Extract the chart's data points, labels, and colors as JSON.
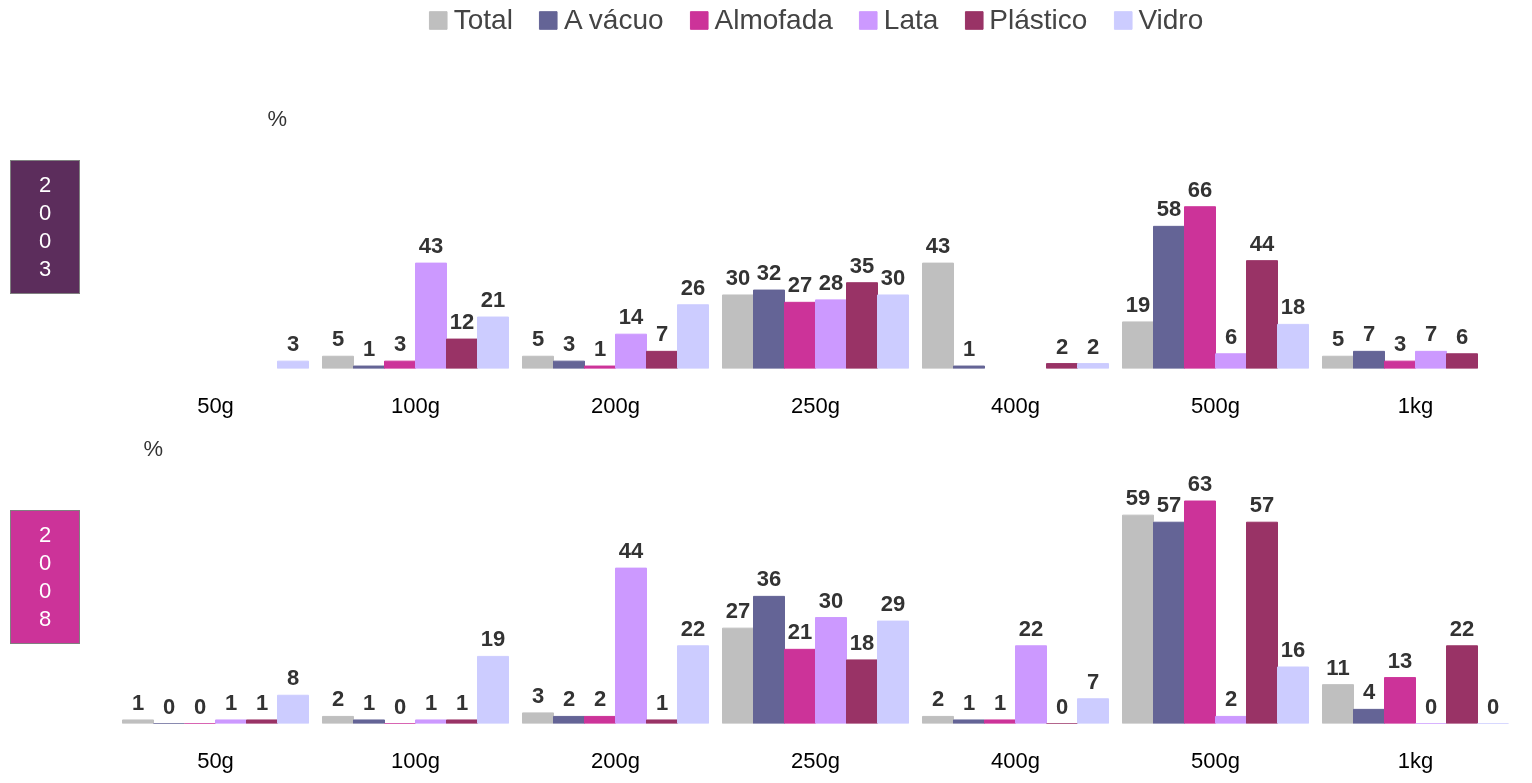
{
  "chart_data": [
    {
      "type": "bar",
      "title": "2003",
      "annotations": [
        "%"
      ],
      "categories": [
        "50g",
        "100g",
        "200g",
        "250g",
        "400g",
        "500g",
        "1kg"
      ],
      "data_labels": true,
      "legend": "top",
      "tick_labels": "x",
      "grid": false,
      "series": [
        {
          "name": "Total",
          "color": "#bfbfbf",
          "values": [
            null,
            5,
            5,
            30,
            43,
            19,
            5
          ]
        },
        {
          "name": "A vácuo",
          "color": "#646496",
          "values": [
            null,
            1,
            3,
            32,
            1,
            58,
            7
          ]
        },
        {
          "name": "Almofada",
          "color": "#cc3399",
          "values": [
            null,
            3,
            1,
            27,
            null,
            66,
            3
          ]
        },
        {
          "name": "Lata",
          "color": "#cc99ff",
          "values": [
            null,
            43,
            14,
            28,
            null,
            6,
            7
          ]
        },
        {
          "name": "Plástico",
          "color": "#993366",
          "values": [
            null,
            12,
            7,
            35,
            2,
            44,
            6
          ]
        },
        {
          "name": "Vidro",
          "color": "#ccccff",
          "values": [
            3,
            21,
            26,
            30,
            2,
            18,
            null
          ]
        }
      ]
    },
    {
      "type": "bar",
      "title": "2008",
      "annotations": [
        "%"
      ],
      "categories": [
        "50g",
        "100g",
        "200g",
        "250g",
        "400g",
        "500g",
        "1kg"
      ],
      "data_labels": true,
      "legend": false,
      "tick_labels": "x",
      "grid": false,
      "series": [
        {
          "color": "#bfbfbf",
          "values": [
            1,
            2,
            3,
            27,
            2,
            59,
            11
          ]
        },
        {
          "color": "#646496",
          "values": [
            0,
            1,
            2,
            36,
            1,
            57,
            4
          ]
        },
        {
          "color": "#cc3399",
          "values": [
            0,
            0,
            2,
            21,
            1,
            63,
            13
          ]
        },
        {
          "color": "#cc99ff",
          "values": [
            1,
            1,
            44,
            30,
            22,
            2,
            0
          ]
        },
        {
          "color": "#993366",
          "values": [
            1,
            1,
            1,
            18,
            0,
            57,
            22
          ]
        },
        {
          "color": "#ccccff",
          "values": [
            8,
            19,
            22,
            29,
            7,
            16,
            0
          ]
        }
      ]
    }
  ]
}
